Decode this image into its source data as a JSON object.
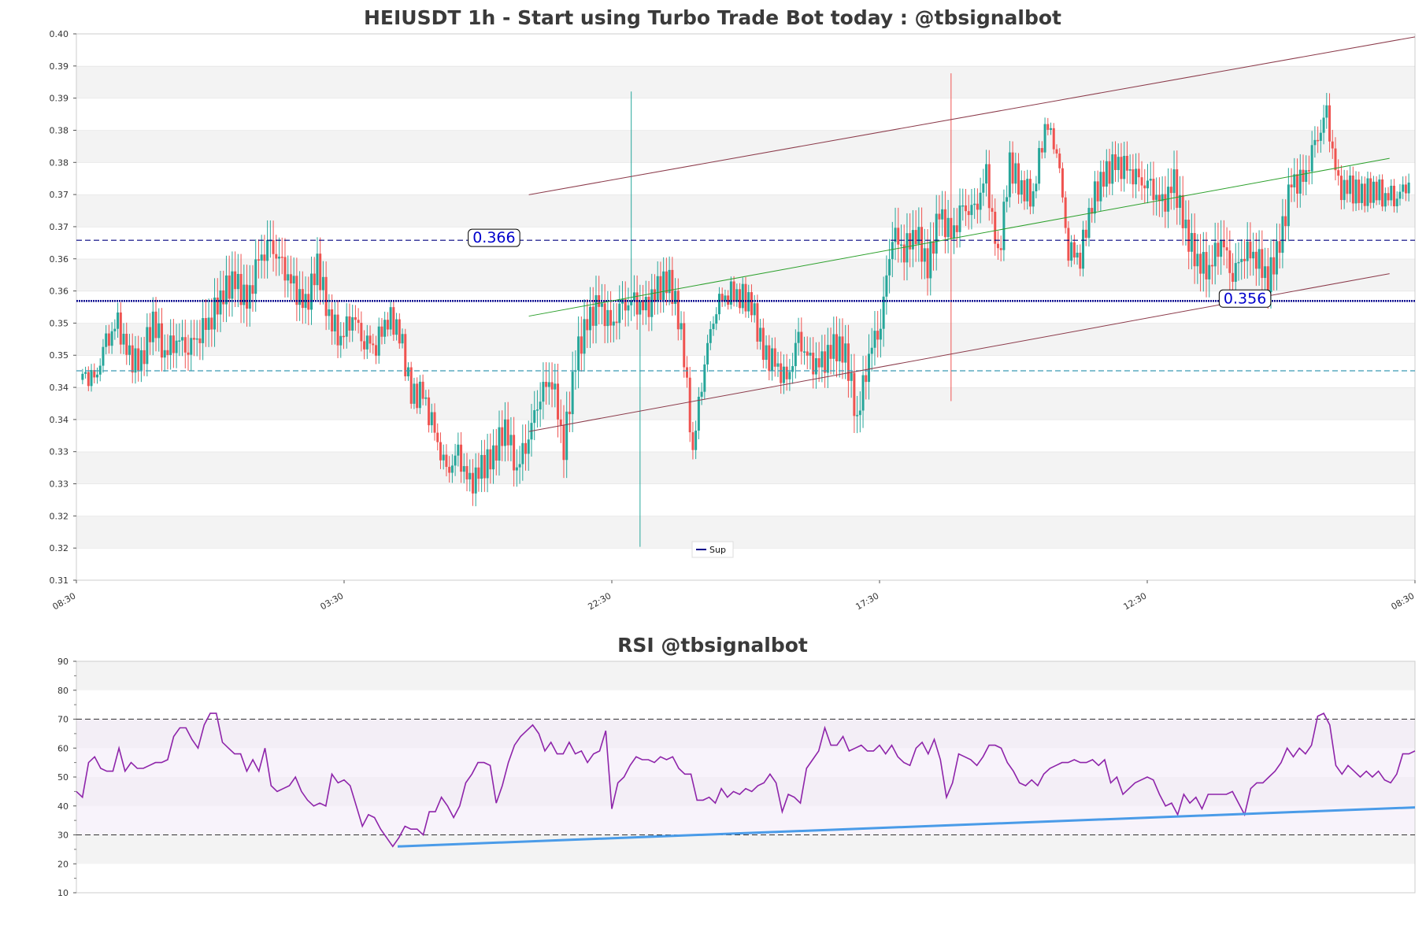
{
  "price_chart": {
    "title": "HEIUSDT 1h - Start using Turbo Trade Bot today : @tbsignalbot",
    "y_ticks": [
      "0.31",
      "0.32",
      "0.32",
      "0.33",
      "0.33",
      "0.34",
      "0.34",
      "0.35",
      "0.35",
      "0.36",
      "0.36",
      "0.37",
      "0.37",
      "0.38",
      "0.38",
      "0.39",
      "0.39",
      "0.40"
    ],
    "x_ticks": [
      "08:30",
      "03:30",
      "22:30",
      "17:30",
      "12:30",
      "08:30"
    ],
    "legend": "Sup",
    "level_labels": [
      "0.366",
      "0.356"
    ],
    "colors": {
      "up": "#26a69a",
      "down": "#ef5350",
      "channel": "#8b3a4a",
      "trend": "#2ca02c",
      "level_dash": "#000080",
      "support": "#00008b",
      "lower_dash": "#3b9bb5"
    }
  },
  "rsi_chart": {
    "title": "RSI @tbsignalbot",
    "y_ticks": [
      "10",
      "20",
      "30",
      "40",
      "50",
      "60",
      "70",
      "80",
      "90"
    ],
    "colors": {
      "line": "#8e24aa",
      "trend": "#4a9be8",
      "bounds": "#333333"
    }
  },
  "chart_data": [
    {
      "type": "candlestick",
      "title": "HEIUSDT 1h - Start using Turbo Trade Bot today : @tbsignalbot",
      "ylim": [
        0.31,
        0.4
      ],
      "x_tick_labels": [
        "08:30",
        "03:30",
        "22:30",
        "17:30",
        "12:30",
        "08:30"
      ],
      "levels": {
        "resistance_dashed": 0.366,
        "support": 0.356,
        "lower_dashed": 0.3445
      },
      "legend": [
        "Sup"
      ],
      "close_path": [
        0.344,
        0.3425,
        0.349,
        0.352,
        0.3465,
        0.346,
        0.353,
        0.3475,
        0.35,
        0.3485,
        0.351,
        0.3535,
        0.3575,
        0.3595,
        0.3555,
        0.3625,
        0.365,
        0.3615,
        0.358,
        0.355,
        0.362,
        0.3535,
        0.35,
        0.354,
        0.3495,
        0.349,
        0.3535,
        0.351,
        0.3405,
        0.3405,
        0.334,
        0.3275,
        0.3305,
        0.3255,
        0.3285,
        0.3305,
        0.3355,
        0.3285,
        0.334,
        0.341,
        0.3435,
        0.332,
        0.3465,
        0.3525,
        0.3555,
        0.3515,
        0.355,
        0.3555,
        0.3545,
        0.358,
        0.3595,
        0.3515,
        0.3315,
        0.3465,
        0.3555,
        0.3575,
        0.357,
        0.3555,
        0.3475,
        0.3455,
        0.3425,
        0.3495,
        0.3455,
        0.3455,
        0.3485,
        0.3475,
        0.3365,
        0.3475,
        0.3525,
        0.3675,
        0.3645,
        0.3675,
        0.3615,
        0.3705,
        0.3665,
        0.371,
        0.3705,
        0.3765,
        0.3625,
        0.3785,
        0.3745,
        0.3735,
        0.3855,
        0.3815,
        0.3645,
        0.3635,
        0.3725,
        0.3765,
        0.3785,
        0.3775,
        0.3755,
        0.3745,
        0.3715,
        0.3755,
        0.3675,
        0.3625,
        0.3615,
        0.3665,
        0.3605,
        0.3645,
        0.3635,
        0.3595,
        0.3655,
        0.3755,
        0.3755,
        0.3815,
        0.3865,
        0.3745,
        0.3745,
        0.3735,
        0.3745,
        0.3735,
        0.3735,
        0.3755
      ],
      "note_on_data": "Candles approximate hourly OHLC read from the figure."
    },
    {
      "type": "line",
      "title": "RSI @tbsignalbot",
      "ylim": [
        10,
        90
      ],
      "bands": [
        30,
        70
      ],
      "y_ticks": [
        10,
        20,
        30,
        40,
        50,
        60,
        70,
        80,
        90
      ],
      "values": [
        45,
        43,
        55,
        57,
        53,
        52,
        52,
        60,
        52,
        55,
        53,
        53,
        54,
        55,
        55,
        56,
        64,
        67,
        67,
        63,
        60,
        68,
        72,
        72,
        62,
        60,
        58,
        58,
        52,
        56,
        52,
        60,
        47,
        45,
        46,
        47,
        50,
        45,
        42,
        40,
        41,
        40,
        51,
        48,
        49,
        47,
        40,
        33,
        37,
        36,
        32,
        29,
        26,
        29,
        33,
        32,
        32,
        30,
        38,
        38,
        43,
        40,
        36,
        40,
        48,
        51,
        55,
        55,
        54,
        41,
        47,
        55,
        61,
        64,
        66,
        68,
        65,
        59,
        62,
        58,
        58,
        62,
        58,
        59,
        55,
        58,
        59,
        66,
        39,
        48,
        50,
        54,
        57,
        56,
        56,
        55,
        57,
        56,
        57,
        53,
        51,
        51,
        42,
        42,
        43,
        41,
        46,
        43,
        45,
        44,
        46,
        45,
        47,
        48,
        51,
        48,
        38,
        44,
        43,
        41,
        53,
        56,
        59,
        67,
        61,
        61,
        64,
        59,
        60,
        61,
        59,
        59,
        61,
        58,
        61,
        57,
        55,
        54,
        60,
        62,
        58,
        63,
        56,
        43,
        48,
        58,
        57,
        56,
        54,
        57,
        61,
        61,
        60,
        55,
        52,
        48,
        47,
        49,
        47,
        51,
        53,
        54,
        55,
        55,
        56,
        55,
        55,
        56,
        54,
        56,
        48,
        50,
        44,
        46,
        48,
        49,
        50,
        49,
        44,
        40,
        41,
        37,
        44,
        41,
        43,
        39,
        44,
        44,
        44,
        44,
        45,
        41,
        37,
        46,
        48,
        48,
        50,
        52,
        55,
        60,
        57,
        60,
        58,
        61,
        71,
        72,
        68,
        54,
        51,
        54,
        52,
        50,
        52,
        50,
        52,
        49,
        48,
        51,
        58,
        58,
        59
      ],
      "trendline": [
        [
          0.24,
          26
        ],
        [
          1.0,
          39.5
        ]
      ]
    }
  ]
}
